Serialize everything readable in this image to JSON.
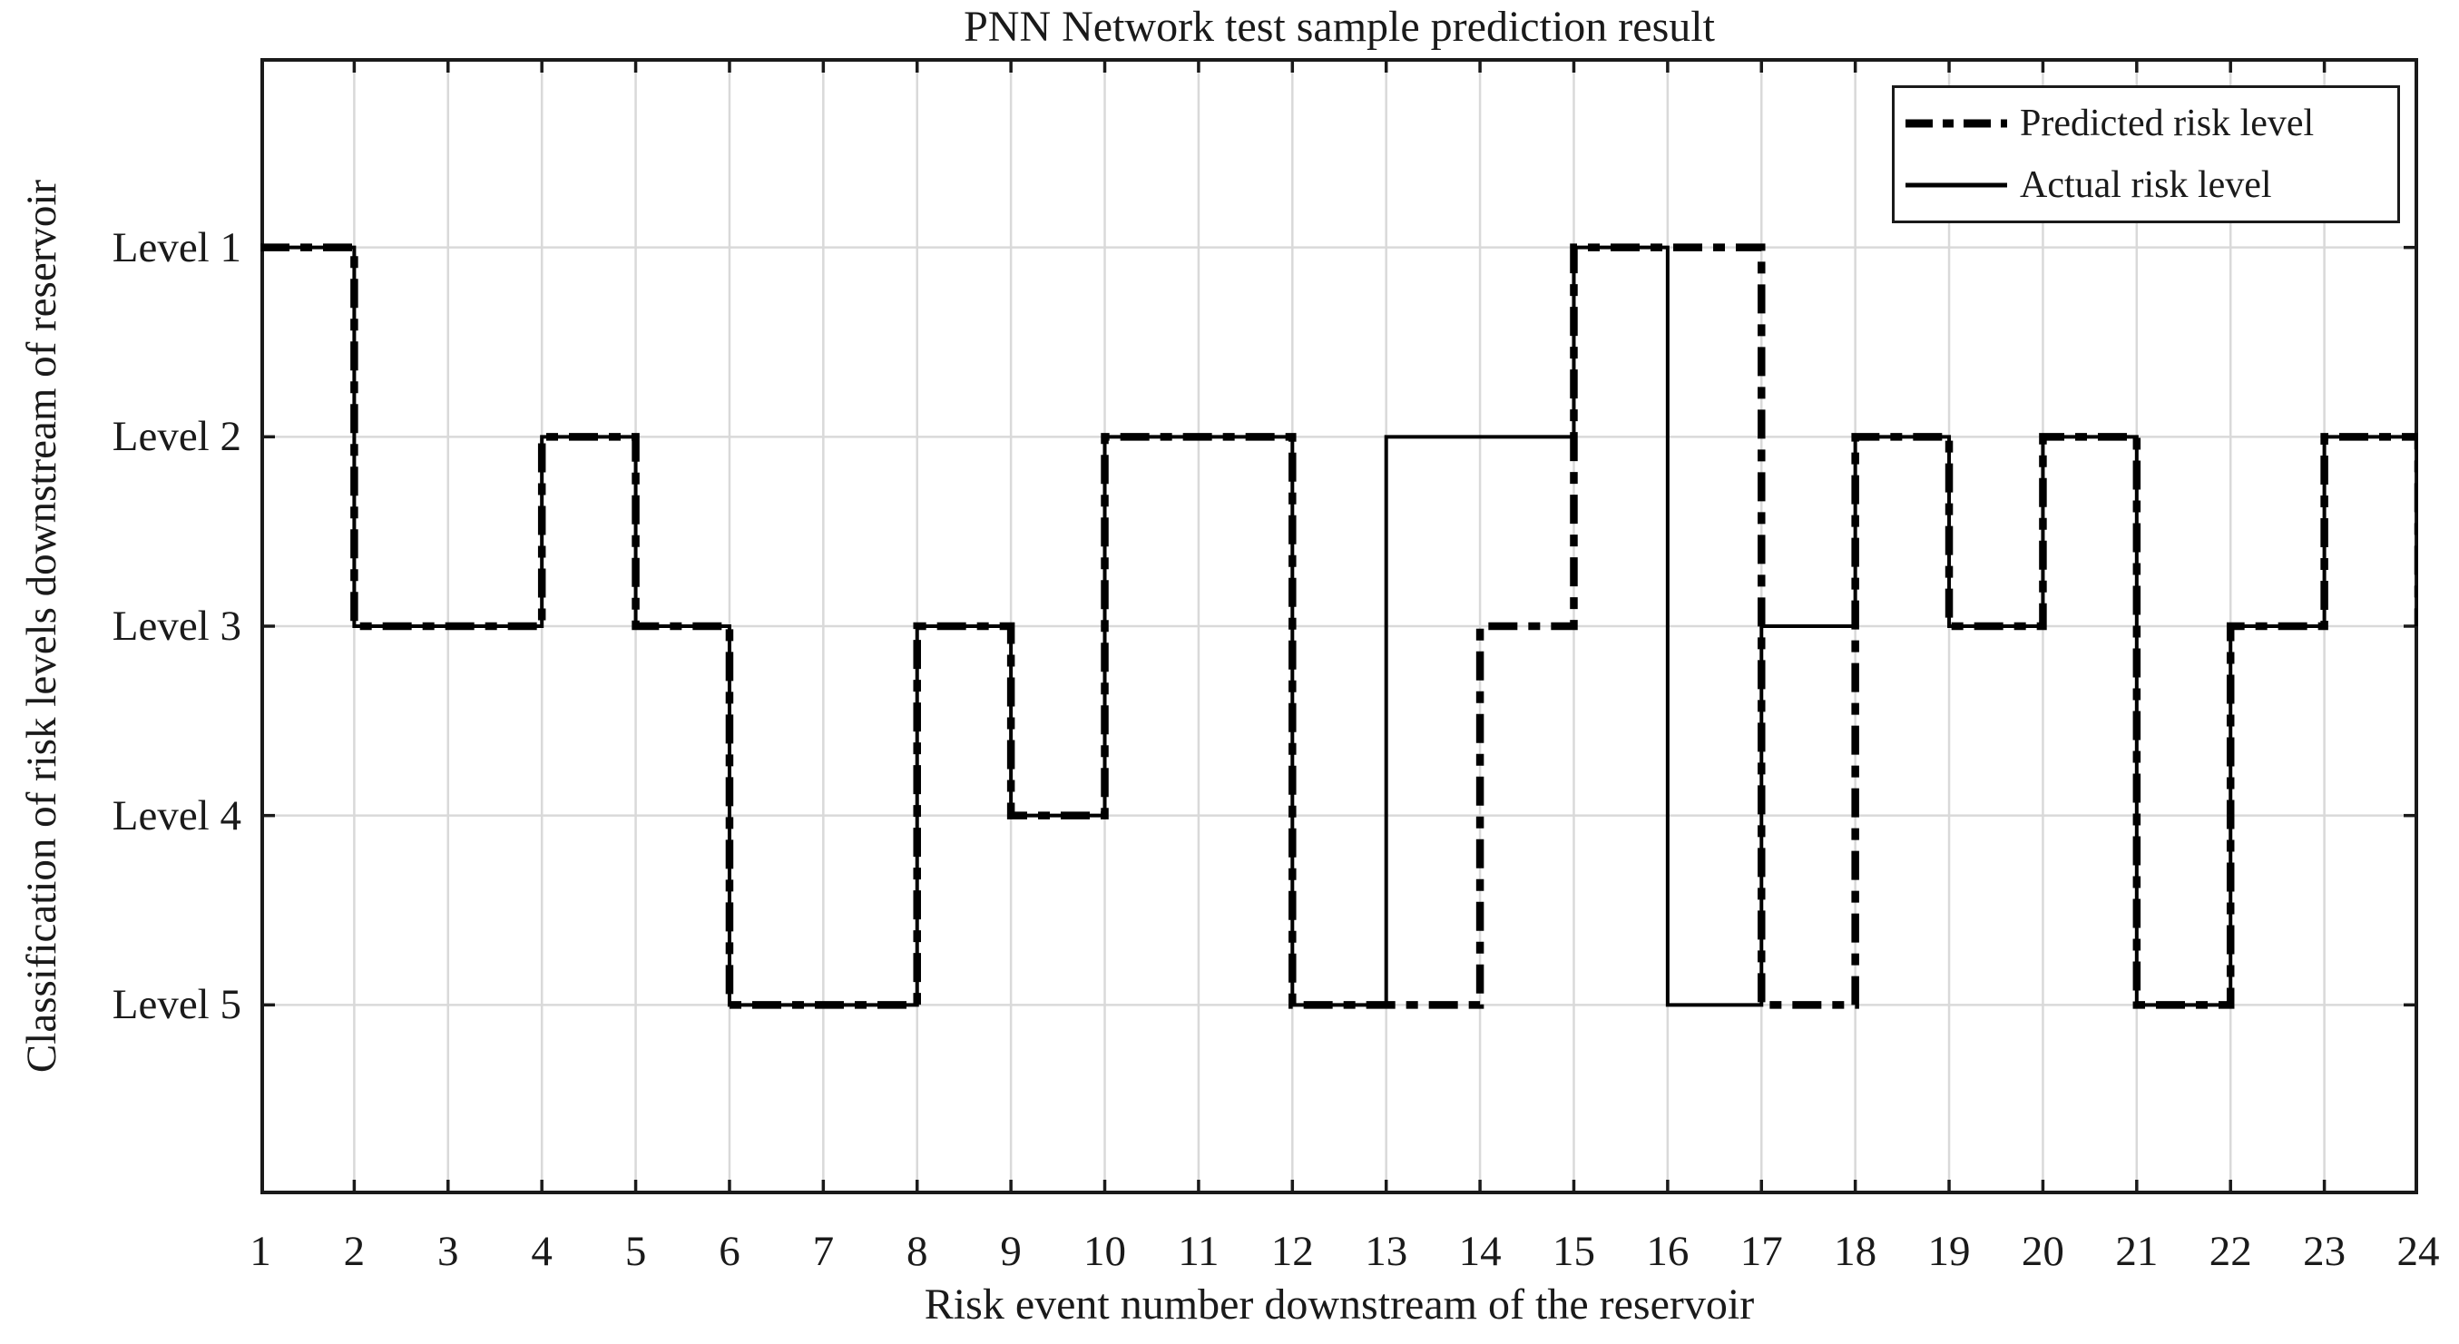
{
  "figure": {
    "title": "PNN Network test sample prediction result",
    "x_axis_label": "Risk event number downstream of the reservoir",
    "y_axis_label": "Classification of risk levels downstream of reservoir"
  },
  "legend": {
    "items": [
      {
        "label": "Predicted risk level",
        "style": "dash-dot"
      },
      {
        "label": "Actual risk level",
        "style": "solid"
      }
    ]
  },
  "chart_data": {
    "type": "line",
    "subtype": "stairs",
    "title": "PNN Network test sample prediction result",
    "xlabel": "Risk event number downstream of the reservoir",
    "ylabel": "Classification of risk levels downstream of reservoir",
    "x": [
      1,
      2,
      3,
      4,
      5,
      6,
      7,
      8,
      9,
      10,
      11,
      12,
      13,
      14,
      15,
      16,
      17,
      18,
      19,
      20,
      21,
      22,
      23,
      24
    ],
    "x_tick_labels": [
      "1",
      "2",
      "3",
      "4",
      "5",
      "6",
      "7",
      "8",
      "9",
      "10",
      "11",
      "12",
      "13",
      "14",
      "15",
      "16",
      "17",
      "18",
      "19",
      "20",
      "21",
      "22",
      "23",
      "24"
    ],
    "y_tick_labels": [
      "Level 1",
      "Level 2",
      "Level 3",
      "Level 4",
      "Level 5"
    ],
    "y_tick_values": [
      1,
      2,
      3,
      4,
      5
    ],
    "y_axis_inverted": true,
    "ylim": [
      0,
      6
    ],
    "xlim": [
      1,
      24
    ],
    "grid": true,
    "legend_position": "top-right",
    "series": [
      {
        "name": "Actual risk level",
        "style": "solid",
        "values": [
          1,
          3,
          3,
          2,
          3,
          5,
          5,
          3,
          4,
          2,
          2,
          5,
          2,
          2,
          1,
          5,
          3,
          2,
          3,
          2,
          5,
          3,
          2,
          3
        ]
      },
      {
        "name": "Predicted risk level",
        "style": "dash-dot",
        "values": [
          1,
          3,
          3,
          2,
          3,
          5,
          5,
          3,
          4,
          2,
          2,
          5,
          5,
          3,
          1,
          1,
          5,
          2,
          3,
          2,
          5,
          3,
          2,
          3
        ]
      }
    ],
    "colors": {
      "line": "#000000",
      "grid": "#d9d9d9",
      "axis": "#1a1a1a",
      "background": "#ffffff"
    }
  }
}
